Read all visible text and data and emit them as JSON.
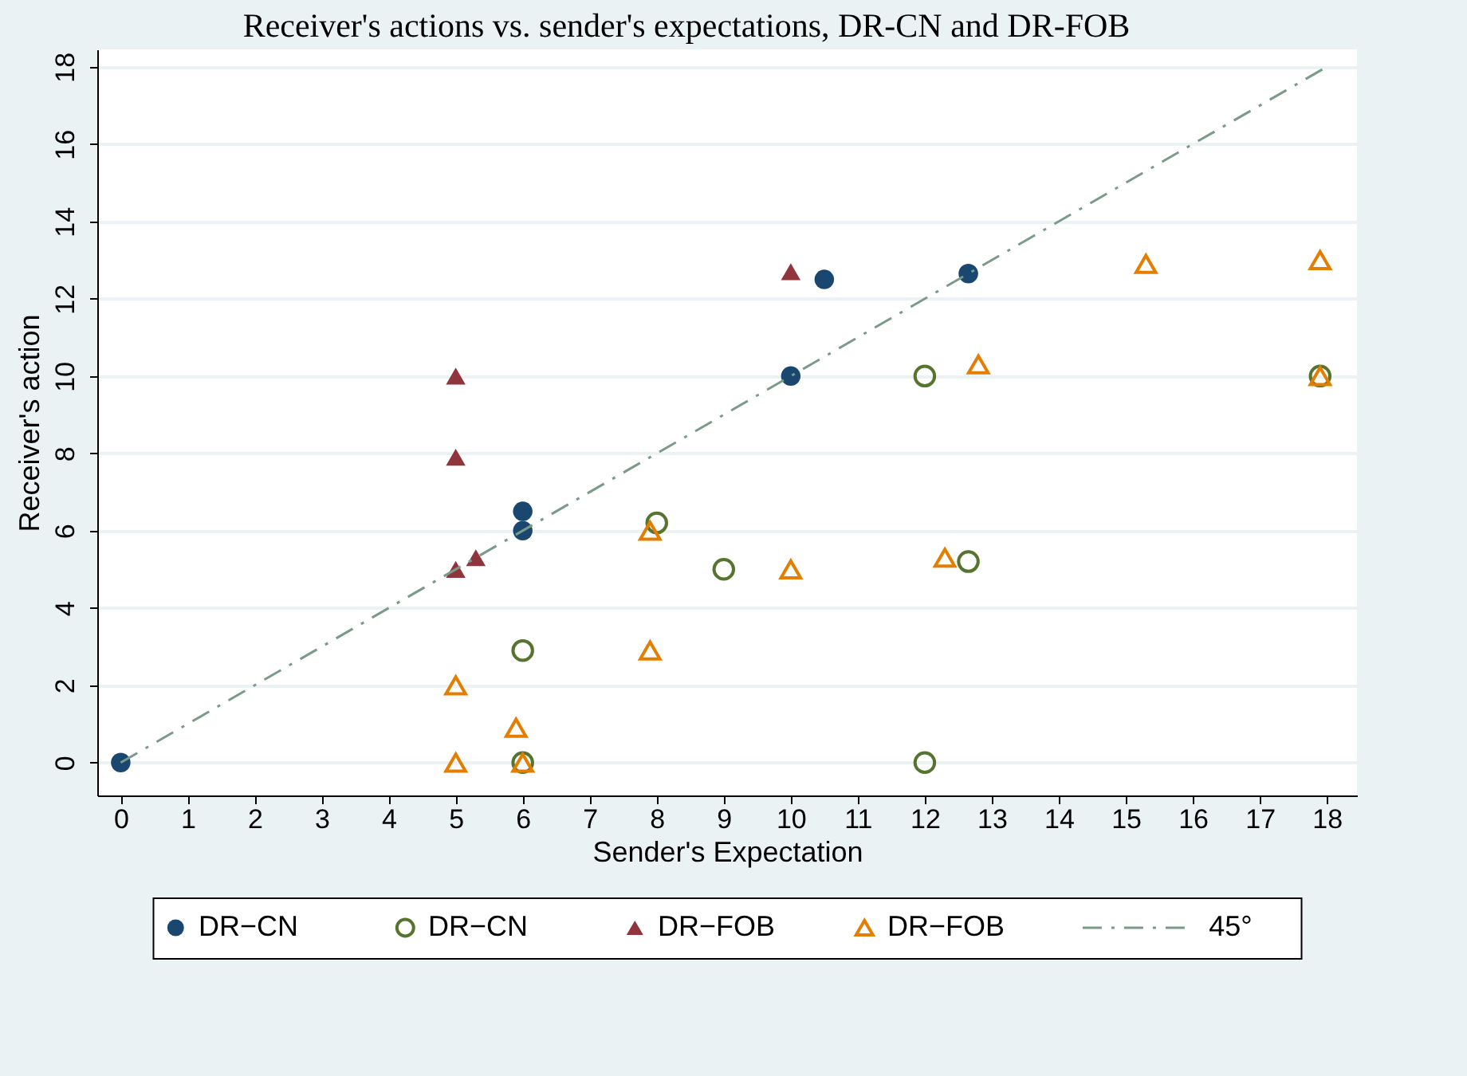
{
  "chart_data": {
    "type": "scatter",
    "title": "Receiver's actions vs. sender's expectations, DR-CN and DR-FOB",
    "xlabel": "Sender's Expectation",
    "ylabel": "Receiver's action",
    "xlim": [
      -0.35,
      18.45
    ],
    "xticks": [
      0,
      1,
      2,
      3,
      4,
      5,
      6,
      7,
      8,
      9,
      10,
      11,
      12,
      13,
      14,
      15,
      16,
      17,
      18
    ],
    "ylim": [
      -0.85,
      18.45
    ],
    "yticks": [
      0,
      2,
      4,
      6,
      8,
      10,
      12,
      14,
      16,
      18
    ],
    "grid": "y",
    "legend": "bottom",
    "series": [
      {
        "name": "DR−CN",
        "type": "scatter",
        "marker": "circle",
        "color": "#1a476f",
        "x": [
          0,
          6,
          6,
          10,
          10.5,
          12.65
        ],
        "values": [
          0,
          6.5,
          6,
          10,
          12.5,
          12.65
        ]
      },
      {
        "name": "DR−CN",
        "type": "scatter",
        "marker": "circle",
        "color": "#55752f",
        "x": [
          6,
          8,
          9,
          6,
          12,
          12.65,
          12,
          17.9
        ],
        "values": [
          2.9,
          6.2,
          5,
          0,
          10,
          5.2,
          0,
          10
        ]
      },
      {
        "name": "DR−FOB",
        "type": "scatter",
        "marker": "triangle",
        "color": "#90353b",
        "x": [
          5,
          5,
          5,
          5.3,
          10
        ],
        "values": [
          10,
          7.9,
          5,
          5.3,
          12.7
        ]
      },
      {
        "name": "DR−FOB",
        "type": "scatter",
        "marker": "triangle",
        "color": "#e37e00",
        "x": [
          5,
          5,
          5.9,
          6,
          7.9,
          7.9,
          10,
          12.3,
          12.8,
          15.3,
          17.9,
          17.9
        ],
        "values": [
          2,
          0,
          0.9,
          0,
          6,
          2.9,
          5,
          5.3,
          10.3,
          12.9,
          13,
          10
        ]
      },
      {
        "name": "45°",
        "type": "line",
        "line_style": "dashed",
        "color": "#7a9a8a",
        "x": [
          0,
          18
        ],
        "values": [
          0,
          18
        ]
      }
    ]
  }
}
